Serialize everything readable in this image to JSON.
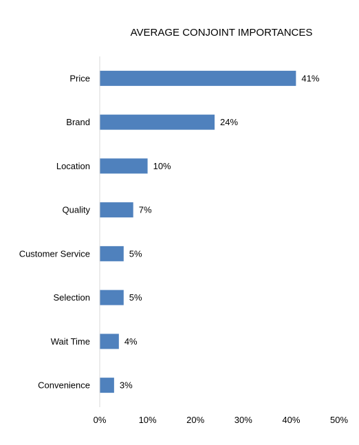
{
  "chart_data": {
    "type": "bar",
    "orientation": "horizontal",
    "title": "AVERAGE CONJOINT IMPORTANCES",
    "xlabel": "",
    "ylabel": "",
    "categories": [
      "Price",
      "Brand",
      "Location",
      "Quality",
      "Customer Service",
      "Selection",
      "Wait Time",
      "Convenience"
    ],
    "values": [
      41,
      24,
      10,
      7,
      5,
      5,
      4,
      3
    ],
    "value_labels": [
      "41%",
      "24%",
      "10%",
      "7%",
      "5%",
      "5%",
      "4%",
      "3%"
    ],
    "xlim": [
      0,
      50
    ],
    "x_ticks": [
      0,
      10,
      20,
      30,
      40,
      50
    ],
    "x_tick_labels": [
      "0%",
      "10%",
      "20%",
      "30%",
      "40%",
      "50%"
    ],
    "grid": false,
    "legend": "none",
    "bar_color": "#4F81BD",
    "axis_color": "#D9D9D9"
  }
}
